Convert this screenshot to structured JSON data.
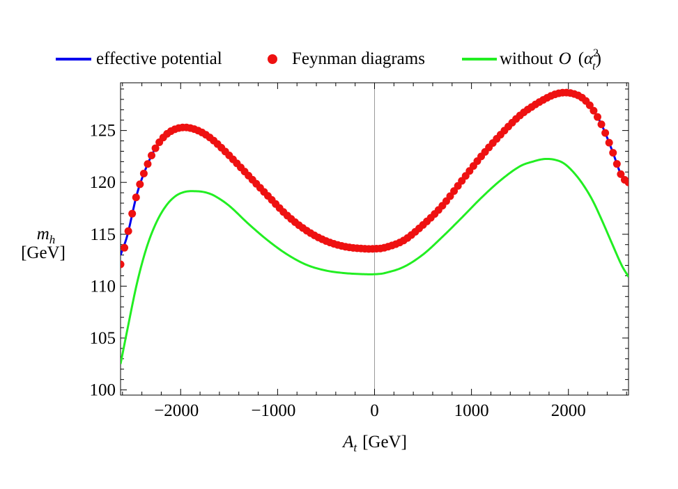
{
  "chart_data": {
    "type": "line",
    "title": "",
    "xlabel": "A_t [GeV]",
    "xlabel_main": "A",
    "xlabel_sub": "t",
    "xlabel_unit": "[GeV]",
    "ylabel_line1": "m",
    "ylabel_line1_sub": "h",
    "ylabel_line2": "[GeV]",
    "xlim": [
      -2620,
      2620
    ],
    "ylim": [
      99.5,
      129.6
    ],
    "xticks": [
      -2000,
      -1000,
      0,
      1000,
      2000
    ],
    "xtick_labels": [
      "−2000",
      "−1000",
      "0",
      "1000",
      "2000"
    ],
    "yticks": [
      100,
      105,
      110,
      115,
      120,
      125
    ],
    "ytick_labels": [
      "100",
      "105",
      "110",
      "115",
      "120",
      "125"
    ],
    "grid": false,
    "legend_position": "top",
    "series": [
      {
        "name": "effective potential",
        "kind": "line",
        "color": "#0000ee",
        "x": [
          -2620,
          -2550,
          -2450,
          -2350,
          -2250,
          -2150,
          -2050,
          -1950,
          -1850,
          -1750,
          -1650,
          -1500,
          -1300,
          -1100,
          -900,
          -700,
          -500,
          -300,
          -100,
          0,
          100,
          300,
          500,
          700,
          900,
          1100,
          1300,
          1500,
          1650,
          1750,
          1850,
          1950,
          2050,
          2150,
          2250,
          2350,
          2450,
          2550,
          2620
        ],
        "values": [
          113.0,
          114.9,
          118.9,
          121.55,
          123.45,
          124.6,
          125.15,
          125.3,
          125.1,
          124.65,
          123.95,
          122.6,
          120.65,
          118.7,
          116.8,
          115.35,
          114.35,
          113.8,
          113.6,
          113.6,
          113.7,
          114.4,
          115.9,
          117.75,
          120.15,
          122.5,
          124.6,
          126.45,
          127.45,
          128.0,
          128.45,
          128.65,
          128.55,
          128.1,
          127.05,
          125.4,
          123.1,
          120.6,
          120.0
        ]
      },
      {
        "name": "Feynman diagrams",
        "kind": "points",
        "color": "#ee1111",
        "x": [
          -2620,
          -2550,
          -2450,
          -2350,
          -2250,
          -2150,
          -2050,
          -1950,
          -1850,
          -1750,
          -1650,
          -1500,
          -1300,
          -1100,
          -900,
          -700,
          -500,
          -300,
          -100,
          0,
          100,
          300,
          500,
          700,
          900,
          1100,
          1300,
          1500,
          1650,
          1750,
          1850,
          1950,
          2050,
          2150,
          2250,
          2350,
          2450,
          2550,
          2620
        ],
        "values": [
          112.1,
          114.9,
          118.9,
          121.55,
          123.45,
          124.6,
          125.15,
          125.3,
          125.1,
          124.65,
          123.95,
          122.6,
          120.65,
          118.7,
          116.8,
          115.35,
          114.35,
          113.8,
          113.6,
          113.6,
          113.7,
          114.4,
          115.9,
          117.75,
          120.15,
          122.5,
          124.6,
          126.45,
          127.45,
          128.0,
          128.45,
          128.65,
          128.55,
          128.1,
          127.05,
          125.4,
          123.1,
          120.6,
          120.0
        ],
        "point_step": 40
      },
      {
        "name_prefix": "without ",
        "name_O": "O",
        "name_paren_open": "(",
        "name_alpha": "α",
        "name_sup": "2",
        "name_sub": "t",
        "name_paren_close": ")",
        "kind": "line",
        "color": "#22ee22",
        "x": [
          -2620,
          -2550,
          -2450,
          -2350,
          -2250,
          -2150,
          -2050,
          -1950,
          -1850,
          -1750,
          -1650,
          -1500,
          -1300,
          -1100,
          -900,
          -700,
          -500,
          -300,
          -100,
          0,
          100,
          300,
          500,
          700,
          900,
          1100,
          1300,
          1500,
          1650,
          1750,
          1850,
          1950,
          2050,
          2150,
          2250,
          2350,
          2450,
          2550,
          2620
        ],
        "values": [
          102.5,
          105.8,
          110.3,
          113.75,
          116.15,
          117.75,
          118.7,
          119.1,
          119.15,
          119.05,
          118.7,
          117.75,
          116.0,
          114.4,
          113.05,
          112.05,
          111.5,
          111.25,
          111.15,
          111.15,
          111.25,
          111.85,
          113.05,
          114.75,
          116.6,
          118.5,
          120.2,
          121.55,
          122.05,
          122.25,
          122.2,
          121.85,
          121.0,
          119.8,
          118.25,
          116.25,
          114.1,
          112.0,
          110.9
        ]
      }
    ]
  },
  "colors": {
    "axis": "#000000",
    "zero_line": "#999999"
  }
}
